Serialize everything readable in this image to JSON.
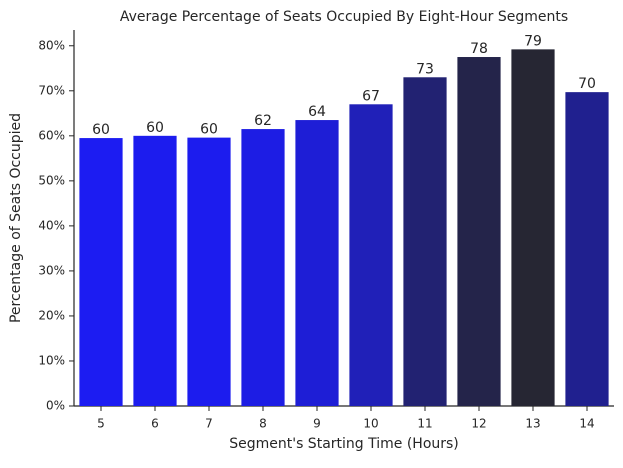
{
  "chart_data": {
    "type": "bar",
    "title": "Average Percentage of Seats Occupied By Eight-Hour Segments",
    "x_label": "Segment's Starting Time (Hours)",
    "y_label": "Percentage of Seats Occupied",
    "categories": [
      "5",
      "6",
      "7",
      "8",
      "9",
      "10",
      "11",
      "12",
      "13",
      "14"
    ],
    "values": [
      59.5,
      60,
      59.6,
      61.5,
      63.5,
      67,
      73,
      77.5,
      79.2,
      69.7
    ],
    "value_labels": [
      "60",
      "60",
      "60",
      "62",
      "64",
      "67",
      "73",
      "78",
      "79",
      "70"
    ],
    "colors": [
      "#1c1cf2",
      "#1c1cee",
      "#1c1cee",
      "#1d1de4",
      "#1e1ed6",
      "#2020b8",
      "#222272",
      "#24244a",
      "#262633",
      "#20208f"
    ],
    "ylim": [
      0,
      83.5
    ],
    "yticks": [
      {
        "value": 0,
        "label": "0%"
      },
      {
        "value": 10,
        "label": "10%"
      },
      {
        "value": 20,
        "label": "20%"
      },
      {
        "value": 30,
        "label": "30%"
      },
      {
        "value": 40,
        "label": "40%"
      },
      {
        "value": 50,
        "label": "50%"
      },
      {
        "value": 60,
        "label": "60%"
      },
      {
        "value": 70,
        "label": "70%"
      },
      {
        "value": 80,
        "label": "80%"
      }
    ]
  }
}
